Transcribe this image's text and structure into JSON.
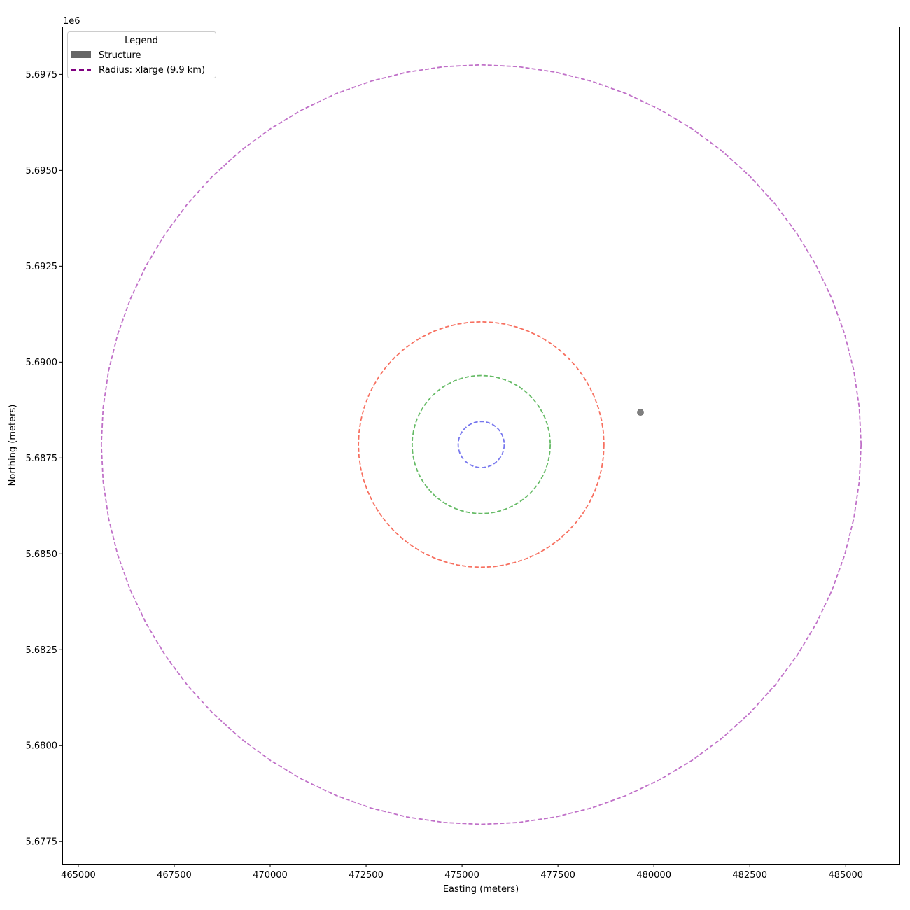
{
  "chart_data": {
    "type": "scatter",
    "title": "",
    "xlabel": "Easting (meters)",
    "ylabel": "Northing (meters)",
    "y_offset_label": "1e6",
    "xlim": [
      464600,
      486400
    ],
    "ylim": [
      5.67692,
      5.69873
    ],
    "x_ticks": [
      465000,
      467500,
      470000,
      472500,
      475000,
      477500,
      480000,
      482500,
      485000
    ],
    "x_tick_labels": [
      "465000",
      "467500",
      "470000",
      "472500",
      "475000",
      "477500",
      "480000",
      "482500",
      "485000"
    ],
    "y_ticks": [
      5.6775,
      5.68,
      5.6825,
      5.685,
      5.6875,
      5.69,
      5.6925,
      5.695,
      5.6975
    ],
    "y_tick_labels": [
      "5.6775",
      "5.6800",
      "5.6825",
      "5.6850",
      "5.6875",
      "5.6900",
      "5.6925",
      "5.6950",
      "5.6975"
    ],
    "grid": false,
    "center": {
      "x": 475500,
      "y": 5.68785
    },
    "rings": [
      {
        "radius_m": 600,
        "color": "#7777ee"
      },
      {
        "radius_m": 1800,
        "color": "#66bb66"
      },
      {
        "radius_m": 3200,
        "color": "#f77060"
      },
      {
        "radius_m": 9900,
        "color": "#c070c8"
      }
    ],
    "structures": [
      {
        "x": 479650,
        "y": 5.68869,
        "color": "#7f7f7f"
      }
    ],
    "legend": {
      "title": "Legend",
      "position": "top-left",
      "items": [
        {
          "label": "Structure",
          "kind": "patch",
          "color": "#666666"
        },
        {
          "label": "Radius: xlarge (9.9 km)",
          "kind": "dashed-line",
          "color": "#800080"
        }
      ]
    }
  }
}
